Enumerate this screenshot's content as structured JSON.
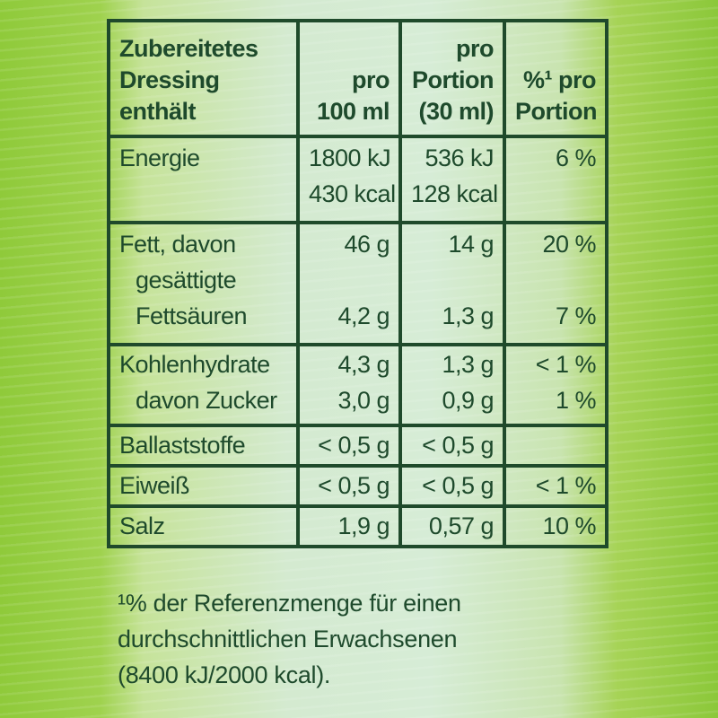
{
  "table": {
    "header": {
      "col1_lines": [
        "Zubereitetes",
        "Dressing",
        "enthält"
      ],
      "col2_lines": [
        "",
        "pro",
        "100 ml"
      ],
      "col3_lines": [
        "pro",
        "Portion",
        "(30 ml)"
      ],
      "col4_lines": [
        "",
        "%¹ pro",
        "Portion"
      ]
    },
    "rows": {
      "energy": {
        "label": "Energie",
        "per100_kj": "1800 kJ",
        "per100_kcal": "430 kcal",
        "portion_kj": "536 kJ",
        "portion_kcal": "128 kcal",
        "percent": "6 %"
      },
      "fat": {
        "label": "Fett, davon",
        "per100": "46 g",
        "portion": "14 g",
        "percent": "20 %",
        "sub_label_line1": "gesättigte",
        "sub_label_line2": "Fettsäuren",
        "sub_per100": "4,2 g",
        "sub_portion": "1,3 g",
        "sub_percent": "7 %"
      },
      "carbs": {
        "label": "Kohlenhydrate",
        "per100": "4,3 g",
        "portion": "1,3 g",
        "percent": "< 1 %",
        "sub_label": "davon Zucker",
        "sub_per100": "3,0 g",
        "sub_portion": "0,9 g",
        "sub_percent": "1 %"
      },
      "fibre": {
        "label": "Ballaststoffe",
        "per100": "< 0,5 g",
        "portion": "< 0,5 g",
        "percent": ""
      },
      "protein": {
        "label": "Eiweiß",
        "per100": "< 0,5 g",
        "portion": "< 0,5 g",
        "percent": "< 1 %"
      },
      "salt": {
        "label": "Salz",
        "per100": "1,9 g",
        "portion": "0,57 g",
        "percent": "10 %"
      }
    }
  },
  "footnote": {
    "line1": "¹% der Referenzmenge für einen",
    "line2": "durchschnittlichen Erwachsenen",
    "line3": "(8400 kJ/2000 kcal)."
  },
  "colors": {
    "border": "#1f4a2b",
    "text": "#1e4a2c",
    "background_light": "#d6ecd6",
    "background_edge": "#8fca3a"
  }
}
